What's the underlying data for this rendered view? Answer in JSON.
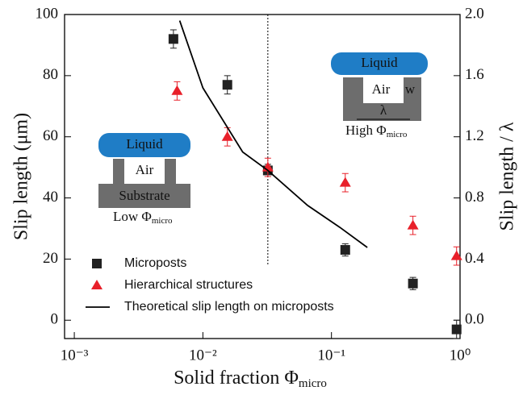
{
  "chart_data": {
    "type": "scatter",
    "xlabel": {
      "text": "Solid fraction  Φ",
      "sub": "micro"
    },
    "ylabel": "Slip length (μm)",
    "y2label": "Slip length / λ",
    "xlog": true,
    "xlim": [
      0.00084,
      1.0
    ],
    "xticks": [
      {
        "value": 0.001,
        "label": "10⁻³"
      },
      {
        "value": 0.01,
        "label": "10⁻²"
      },
      {
        "value": 0.1,
        "label": "10⁻¹"
      },
      {
        "value": 1,
        "label": "10⁰"
      }
    ],
    "ylim": [
      -6,
      100
    ],
    "yticks": [
      0,
      20,
      40,
      60,
      80,
      100
    ],
    "y2lim": [
      -0.12,
      2.0
    ],
    "y2ticks": [
      {
        "value": 0,
        "label": "0.0"
      },
      0.4,
      0.8,
      1.2,
      1.6,
      {
        "value": 2,
        "label": "2.0"
      }
    ],
    "vline": 0.032,
    "series": [
      {
        "name": "Microposts",
        "color": "#222222",
        "marker": "square",
        "x": [
          0.0059,
          0.0155,
          0.032,
          0.128,
          0.43,
          0.94
        ],
        "values": [
          92,
          77,
          49,
          23,
          12,
          -3
        ],
        "errors": [
          3,
          3,
          2,
          2,
          2,
          3
        ]
      },
      {
        "name": "Hierarchical structures",
        "color": "#e8202a",
        "marker": "triangle",
        "x": [
          0.0063,
          0.0155,
          0.032,
          0.128,
          0.43,
          0.94
        ],
        "values": [
          75,
          60,
          50,
          45,
          31,
          21
        ],
        "errors": [
          3,
          3,
          3,
          3,
          3,
          3
        ]
      },
      {
        "name": "Theoretical slip length on microposts",
        "color": "#000000",
        "marker": "line",
        "x": [
          0.0066,
          0.01,
          0.0204,
          0.032,
          0.065,
          0.116,
          0.19
        ],
        "values": [
          98,
          76,
          55,
          49,
          37.6,
          30.4,
          23.8
        ]
      }
    ],
    "legend": "lower left",
    "annotations": {
      "liquid_left": "Liquid",
      "air_left": "Air",
      "substrate": "Substrate",
      "low": "Low Φ",
      "low_sub": "micro",
      "liquid_right": "Liquid",
      "air_right": "Air",
      "w": "w",
      "lambda": "λ",
      "high": "High Φ",
      "high_sub": "micro"
    }
  }
}
